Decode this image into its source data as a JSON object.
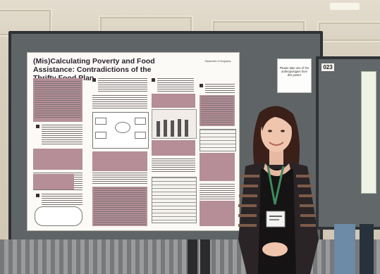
{
  "poster": {
    "title": "(Mis)Calculating Poverty and Food Assistance: Contradictions of the Thrifty Food Plan",
    "authors": "Department of Geography"
  },
  "note_card": {
    "text": "Please take one of the anthropologies from this poster"
  },
  "board_number": "023",
  "colors": {
    "wall": "#d9d0bf",
    "board": "#5f6466",
    "poster_accent": "#b58e97",
    "poster_title": "#2c2430"
  }
}
